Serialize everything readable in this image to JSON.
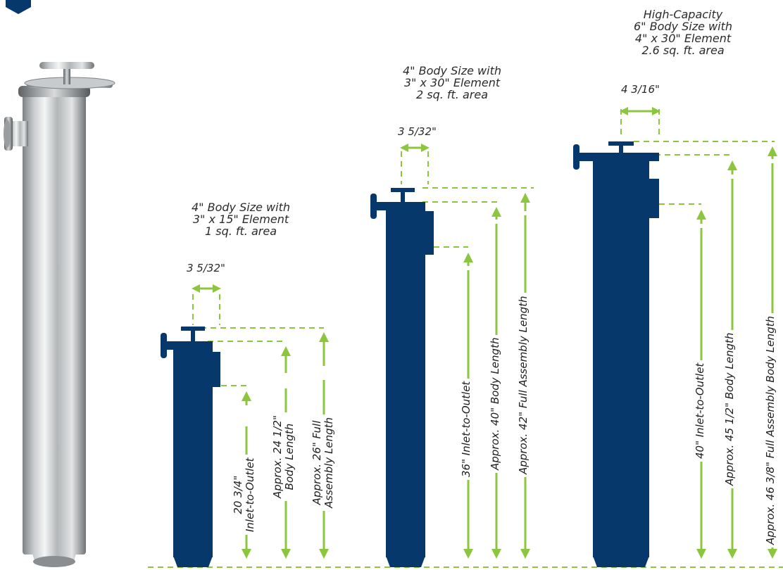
{
  "colors": {
    "body": "#06386b",
    "accent": "#8cc63f",
    "steel": "#b9bcbe",
    "text": "#2b2b2b"
  },
  "photo": {
    "name": "stainless-steel-filter-housing"
  },
  "variants": [
    {
      "caption": [
        "4\" Body Size with",
        "3\" x 15\" Element",
        "1 sq. ft. area"
      ],
      "width_label": "3 5/32\"",
      "inlet": [
        "20 3/4\"",
        "Inlet-to-Outlet"
      ],
      "body": [
        "Approx. 24 1/2\"",
        "Body Length"
      ],
      "assembly": [
        "Approx. 26\" Full",
        "Assembly Length"
      ]
    },
    {
      "caption": [
        "4\" Body Size with",
        "3\" x 30\" Element",
        "2 sq. ft. area"
      ],
      "width_label": "3 5/32\"",
      "inlet": [
        "36\" Inlet-to-Outlet"
      ],
      "body": [
        "Approx. 40\" Body Length"
      ],
      "assembly": [
        "Approx. 42\" Full Assembly Length"
      ]
    },
    {
      "caption": [
        "High-Capacity",
        "6\" Body Size with",
        "4\" x 30\" Element",
        "2.6 sq. ft. area"
      ],
      "width_label": "4 3/16\"",
      "inlet": [
        "40\" Inlet-to-Outlet"
      ],
      "body": [
        "Approx. 45 1/2\" Body Length"
      ],
      "assembly": [
        "Approx. 46 3/8\" Full Assembly Body Length"
      ]
    }
  ]
}
